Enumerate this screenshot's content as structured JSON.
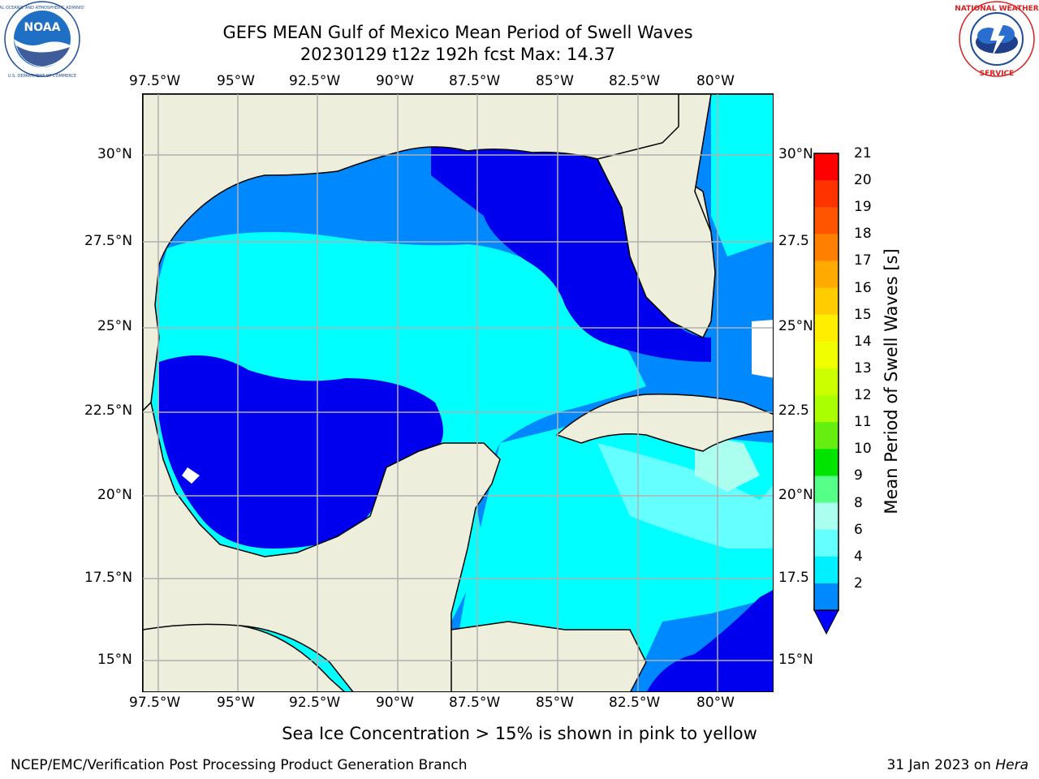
{
  "title": {
    "line1": "GEFS MEAN Gulf of Mexico Mean Period of Swell Waves",
    "line2": "20230129 t12z 192h fcst   Max: 14.37"
  },
  "logos": {
    "noaa_text": "NOAA",
    "noaa_ring": "NATIONAL OCEANIC AND ATMOSPHERIC ADMINISTRATION · U.S. DEPARTMENT OF COMMERCE",
    "nws_ring": "NATIONAL WEATHER SERVICE"
  },
  "axes": {
    "lon_labels": [
      "97.5°W",
      "95°W",
      "92.5°W",
      "90°W",
      "87.5°W",
      "85°W",
      "82.5°W",
      "80°W"
    ],
    "lat_labels_left": [
      "30°N",
      "27.5°N",
      "25°N",
      "22.5°N",
      "20°N",
      "17.5°N",
      "15°N"
    ],
    "lat_labels_right": [
      "30°N",
      "27.5",
      "25°N",
      "22.5",
      "20°N",
      "17.5",
      "15°N"
    ]
  },
  "colorbar": {
    "label": "Mean Period of Swell Waves [s]",
    "ticks": [
      "21",
      "20",
      "19",
      "18",
      "17",
      "16",
      "15",
      "14",
      "13",
      "12",
      "11",
      "10",
      "9",
      "8",
      "6",
      "4",
      "2"
    ],
    "colors": [
      "#ff0000",
      "#ff3300",
      "#ff5500",
      "#ff7f00",
      "#ffaa00",
      "#ffcc00",
      "#ffee00",
      "#f0ff00",
      "#ccff00",
      "#aaff00",
      "#66ee11",
      "#00e400",
      "#55ff88",
      "#aaffee",
      "#66ffff",
      "#00f0ff",
      "#0088ff"
    ],
    "under_color": "#0000ff"
  },
  "colors": {
    "land": "#eeeedd",
    "band_2_4": "#0000ee",
    "band_4_6": "#0088ff",
    "band_6_8": "#00ffff",
    "band_8_9": "#66ffff",
    "band_9_10": "#aaffee",
    "grid": "#b0b0b0"
  },
  "note": "Sea Ice Concentration > 15% is shown in pink to yellow",
  "footer": {
    "left": "NCEP/EMC/Verification Post Processing Product Generation Branch",
    "right_date": "31 Jan 2023 on ",
    "right_machine": "Hera"
  }
}
